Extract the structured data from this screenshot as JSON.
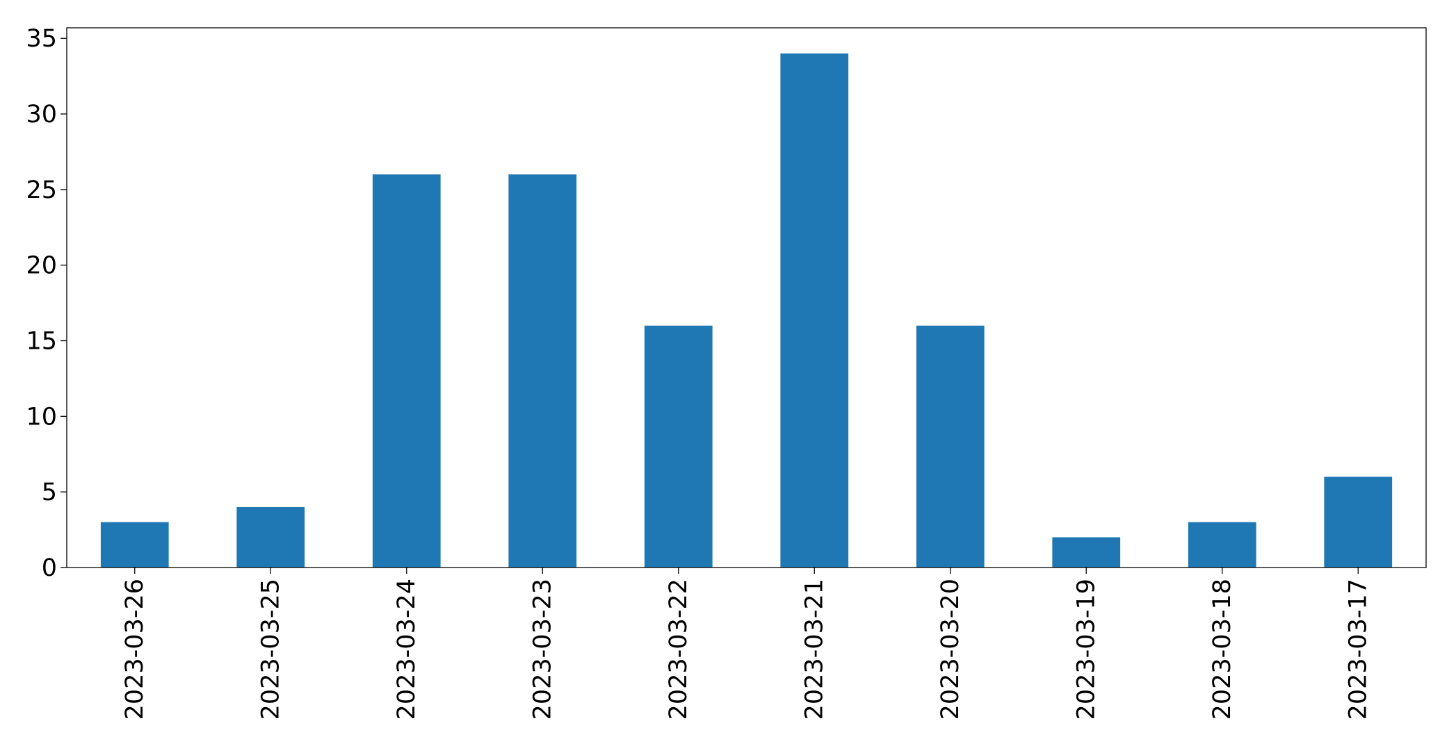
{
  "chart_data": {
    "type": "bar",
    "categories": [
      "2023-03-26",
      "2023-03-25",
      "2023-03-24",
      "2023-03-23",
      "2023-03-22",
      "2023-03-21",
      "2023-03-20",
      "2023-03-19",
      "2023-03-18",
      "2023-03-17"
    ],
    "values": [
      3,
      4,
      26,
      26,
      16,
      34,
      16,
      2,
      3,
      6
    ],
    "color": "#1f77b4",
    "ylim": [
      0,
      35.7
    ],
    "yticks": [
      0,
      5,
      10,
      15,
      20,
      25,
      30,
      35
    ],
    "grid": false
  }
}
